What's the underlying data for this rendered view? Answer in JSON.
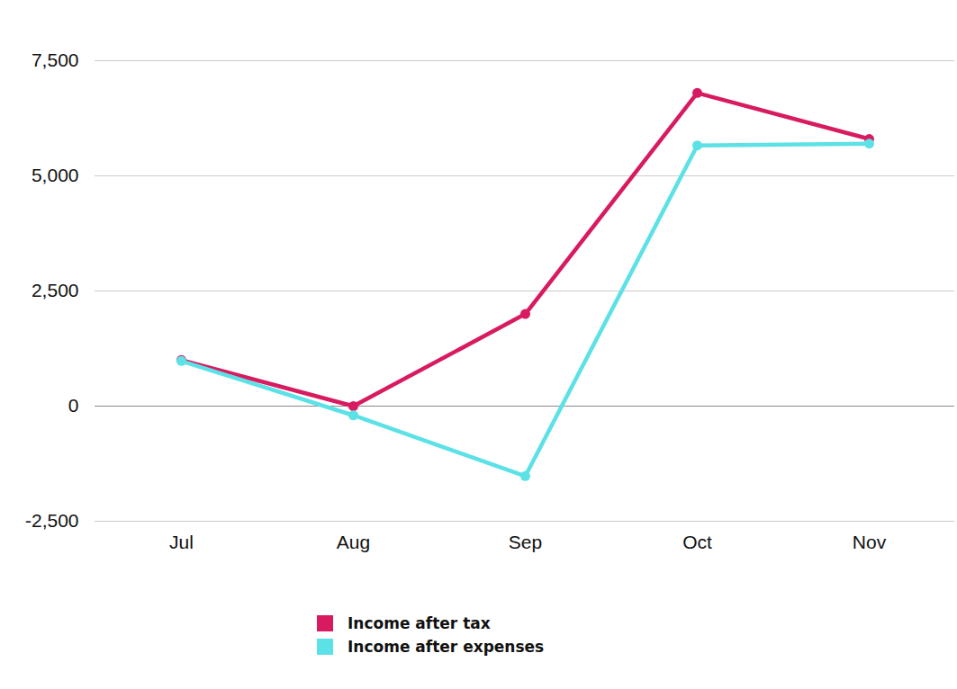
{
  "chart_data": {
    "type": "line",
    "categories": [
      "Jul",
      "Aug",
      "Sep",
      "Oct",
      "Nov"
    ],
    "series": [
      {
        "name": "Income after tax",
        "color": "#d81b60",
        "values": [
          1000,
          0,
          2000,
          6800,
          5800
        ]
      },
      {
        "name": "Income after expenses",
        "color": "#5ce1e6",
        "values": [
          980,
          -200,
          -1520,
          5660,
          5700
        ]
      }
    ],
    "ylim": [
      -2500,
      7500
    ],
    "yticks": [
      {
        "value": -2500,
        "label": "-2,500"
      },
      0,
      {
        "value": 2500,
        "label": "2,500"
      },
      {
        "value": 5000,
        "label": "5,000"
      },
      {
        "value": 7500,
        "label": "7,500"
      }
    ],
    "grid": true,
    "marker": "circle",
    "legend": "bottom"
  }
}
